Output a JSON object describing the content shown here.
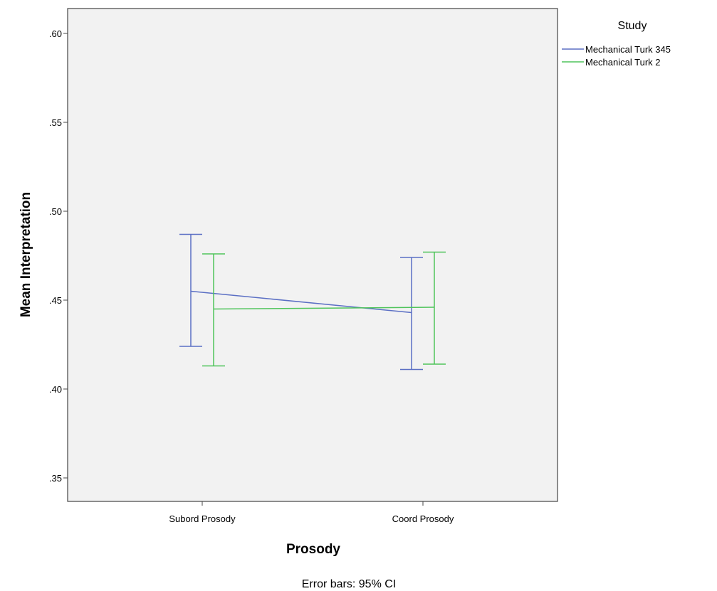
{
  "chart_data": {
    "type": "line",
    "categories": [
      "Subord Prosody",
      "Coord Prosody"
    ],
    "series": [
      {
        "name": "Mechanical Turk 345",
        "color": "#5b6fc4",
        "values": [
          0.455,
          0.443
        ],
        "ci_lower": [
          0.424,
          0.411
        ],
        "ci_upper": [
          0.487,
          0.474
        ]
      },
      {
        "name": "Mechanical Turk 2",
        "color": "#4fc45b",
        "values": [
          0.445,
          0.446
        ],
        "ci_lower": [
          0.413,
          0.414
        ],
        "ci_upper": [
          0.476,
          0.477
        ]
      }
    ],
    "xlabel": "Prosody",
    "ylabel": "Mean Interpretation",
    "ylim": [
      0.335,
      0.62
    ],
    "yticks": [
      0.35,
      0.4,
      0.45,
      0.5,
      0.55,
      0.6
    ],
    "ytick_labels": [
      ".35",
      ".40",
      ".45",
      ".50",
      ".55",
      ".60"
    ],
    "legend_title": "Study",
    "legend_position": "right",
    "footnote": "Error bars: 95% CI",
    "plot_background": "#f2f2f2",
    "grid": false
  }
}
